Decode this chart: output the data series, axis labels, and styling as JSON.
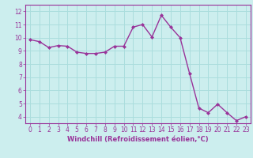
{
  "x": [
    0,
    1,
    2,
    3,
    4,
    5,
    6,
    7,
    8,
    9,
    10,
    11,
    12,
    13,
    14,
    15,
    16,
    17,
    18,
    19,
    20,
    21,
    22,
    23
  ],
  "y": [
    9.85,
    9.7,
    9.25,
    9.4,
    9.35,
    8.9,
    8.8,
    8.8,
    8.9,
    9.35,
    9.35,
    10.8,
    11.0,
    10.05,
    11.7,
    10.8,
    10.0,
    7.3,
    4.65,
    4.3,
    4.95,
    4.3,
    3.7,
    4.0
  ],
  "line_color": "#993399",
  "marker": "D",
  "marker_size": 2.0,
  "bg_color": "#cceeee",
  "grid_color": "#aadddd",
  "xlabel": "Windchill (Refroidissement éolien,°C)",
  "xlabel_color": "#993399",
  "tick_color": "#993399",
  "spine_color": "#993399",
  "ylim": [
    3.5,
    12.5
  ],
  "xlim": [
    -0.5,
    23.5
  ],
  "yticks": [
    4,
    5,
    6,
    7,
    8,
    9,
    10,
    11,
    12
  ],
  "xticks": [
    0,
    1,
    2,
    3,
    4,
    5,
    6,
    7,
    8,
    9,
    10,
    11,
    12,
    13,
    14,
    15,
    16,
    17,
    18,
    19,
    20,
    21,
    22,
    23
  ],
  "xtick_labels": [
    "0",
    "1",
    "2",
    "3",
    "4",
    "5",
    "6",
    "7",
    "8",
    "9",
    "10",
    "11",
    "12",
    "13",
    "14",
    "15",
    "16",
    "17",
    "18",
    "19",
    "20",
    "21",
    "22",
    "23"
  ],
  "line_width": 1.0,
  "tick_fontsize": 5.5,
  "xlabel_fontsize": 6.0
}
